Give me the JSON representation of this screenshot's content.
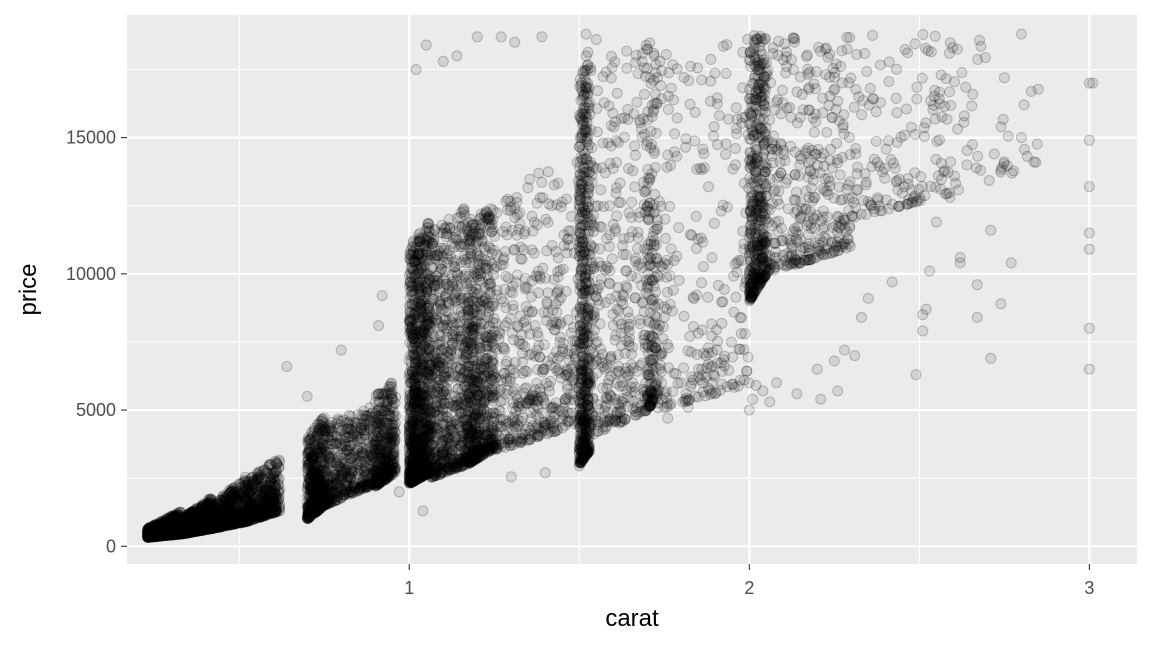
{
  "chart_data": {
    "type": "scatter",
    "title": "",
    "xlabel": "carat",
    "ylabel": "price",
    "xlim": [
      0.17,
      3.14
    ],
    "ylim": [
      -650,
      19500
    ],
    "x_ticks": [
      1,
      2,
      3
    ],
    "x_tick_labels": [
      "1",
      "2",
      "3"
    ],
    "x_minor_ticks": [
      0.5,
      1.5,
      2.5
    ],
    "y_ticks": [
      0,
      5000,
      10000,
      15000
    ],
    "y_tick_labels": [
      "0",
      "5000",
      "10000",
      "15000"
    ],
    "y_minor_ticks": [
      2500,
      7500,
      12500,
      17500
    ],
    "grid": true,
    "panel_color": "#ebebeb",
    "grid_color": "#ffffff",
    "point_color": "#000000",
    "point_alpha": 0.1,
    "clusters": [
      {
        "x": [
          0.23,
          0.33
        ],
        "y_at_min": [
          330,
          650
        ],
        "y_at_max": [
          450,
          1300
        ],
        "density": 900
      },
      {
        "x": [
          0.33,
          0.42
        ],
        "y_at_min": [
          450,
          1000
        ],
        "y_at_max": [
          650,
          1800
        ],
        "density": 700
      },
      {
        "x": [
          0.42,
          0.52
        ],
        "y_at_min": [
          650,
          1500
        ],
        "y_at_max": [
          900,
          2600
        ],
        "density": 500
      },
      {
        "x": [
          0.52,
          0.62
        ],
        "y_at_min": [
          900,
          2400
        ],
        "y_at_max": [
          1300,
          3300
        ],
        "density": 400
      },
      {
        "x": [
          0.7,
          0.75
        ],
        "y_at_min": [
          1000,
          4000
        ],
        "y_at_max": [
          1500,
          4800
        ],
        "density": 450
      },
      {
        "x": [
          0.75,
          0.9
        ],
        "y_at_min": [
          1500,
          4500
        ],
        "y_at_max": [
          2300,
          5200
        ],
        "density": 450
      },
      {
        "x": [
          0.9,
          0.96
        ],
        "y_at_min": [
          2200,
          5500
        ],
        "y_at_max": [
          2700,
          6200
        ],
        "density": 350
      },
      {
        "x": [
          1.0,
          1.06
        ],
        "y_at_min": [
          2300,
          11000
        ],
        "y_at_max": [
          2700,
          12000
        ],
        "density": 1000
      },
      {
        "x": [
          1.06,
          1.17
        ],
        "y_at_min": [
          2500,
          11500
        ],
        "y_at_max": [
          3000,
          12500
        ],
        "density": 650
      },
      {
        "x": [
          1.17,
          1.25
        ],
        "y_at_min": [
          3000,
          12000
        ],
        "y_at_max": [
          3600,
          12500
        ],
        "density": 650
      },
      {
        "x": [
          1.25,
          1.5
        ],
        "y_at_min": [
          3500,
          12500
        ],
        "y_at_max": [
          4500,
          15000
        ],
        "density": 450
      },
      {
        "x": [
          1.5,
          1.53
        ],
        "y_at_min": [
          3000,
          17000
        ],
        "y_at_max": [
          3500,
          18500
        ],
        "density": 550
      },
      {
        "x": [
          1.53,
          1.7
        ],
        "y_at_min": [
          4000,
          18000
        ],
        "y_at_max": [
          5000,
          18500
        ],
        "density": 350
      },
      {
        "x": [
          1.7,
          1.73
        ],
        "y_at_min": [
          5000,
          18700
        ],
        "y_at_max": [
          5500,
          18700
        ],
        "density": 180
      },
      {
        "x": [
          1.73,
          2.0
        ],
        "y_at_min": [
          5000,
          18500
        ],
        "y_at_max": [
          6000,
          18700
        ],
        "density": 250
      },
      {
        "x": [
          2.0,
          2.05
        ],
        "y_at_min": [
          9000,
          18800
        ],
        "y_at_max": [
          10000,
          18800
        ],
        "density": 450
      },
      {
        "x": [
          2.05,
          2.3
        ],
        "y_at_min": [
          10000,
          18800
        ],
        "y_at_max": [
          11000,
          18800
        ],
        "density": 350
      },
      {
        "x": [
          2.3,
          2.6
        ],
        "y_at_min": [
          12000,
          18800
        ],
        "y_at_max": [
          13000,
          18800
        ],
        "density": 150
      },
      {
        "x": [
          2.6,
          2.85
        ],
        "y_at_min": [
          13000,
          18800
        ],
        "y_at_max": [
          14000,
          18800
        ],
        "density": 40
      }
    ],
    "outliers": [
      [
        0.64,
        6600
      ],
      [
        0.7,
        5500
      ],
      [
        0.8,
        7200
      ],
      [
        0.91,
        8100
      ],
      [
        0.92,
        9200
      ],
      [
        1.02,
        17500
      ],
      [
        1.05,
        18400
      ],
      [
        1.1,
        17800
      ],
      [
        1.14,
        18000
      ],
      [
        1.2,
        18700
      ],
      [
        1.27,
        18700
      ],
      [
        1.31,
        18500
      ],
      [
        1.39,
        18700
      ],
      [
        1.52,
        18800
      ],
      [
        1.55,
        18600
      ],
      [
        0.97,
        2000
      ],
      [
        1.04,
        1300
      ],
      [
        1.3,
        2550
      ],
      [
        1.4,
        2700
      ],
      [
        1.5,
        2950
      ],
      [
        1.54,
        4600
      ],
      [
        1.58,
        4400
      ],
      [
        1.62,
        4900
      ],
      [
        1.7,
        5400
      ],
      [
        1.76,
        4700
      ],
      [
        1.82,
        5100
      ],
      [
        1.9,
        5600
      ],
      [
        2.0,
        5000
      ],
      [
        2.01,
        5400
      ],
      [
        2.02,
        5900
      ],
      [
        2.04,
        5700
      ],
      [
        2.06,
        5300
      ],
      [
        2.08,
        6000
      ],
      [
        2.14,
        5600
      ],
      [
        2.2,
        6500
      ],
      [
        2.21,
        5400
      ],
      [
        2.25,
        6800
      ],
      [
        2.26,
        5700
      ],
      [
        2.28,
        7200
      ],
      [
        2.31,
        7000
      ],
      [
        2.33,
        8400
      ],
      [
        2.35,
        9100
      ],
      [
        2.42,
        9700
      ],
      [
        2.49,
        6300
      ],
      [
        2.51,
        7900
      ],
      [
        2.51,
        8500
      ],
      [
        2.52,
        8700
      ],
      [
        2.53,
        10100
      ],
      [
        2.55,
        11900
      ],
      [
        2.59,
        12800
      ],
      [
        2.62,
        10400
      ],
      [
        2.62,
        10600
      ],
      [
        2.67,
        8400
      ],
      [
        2.67,
        9600
      ],
      [
        2.68,
        13800
      ],
      [
        2.71,
        6900
      ],
      [
        2.71,
        11600
      ],
      [
        2.72,
        14400
      ],
      [
        2.74,
        8900
      ],
      [
        2.74,
        15400
      ],
      [
        2.75,
        17200
      ],
      [
        2.77,
        10400
      ],
      [
        2.8,
        18800
      ],
      [
        2.8,
        15000
      ],
      [
        3.0,
        6500
      ],
      [
        3.0,
        8000
      ],
      [
        3.0,
        10900
      ],
      [
        3.0,
        11500
      ],
      [
        3.0,
        13200
      ],
      [
        3.0,
        14900
      ],
      [
        3.0,
        17000
      ],
      [
        3.01,
        17000
      ]
    ]
  }
}
